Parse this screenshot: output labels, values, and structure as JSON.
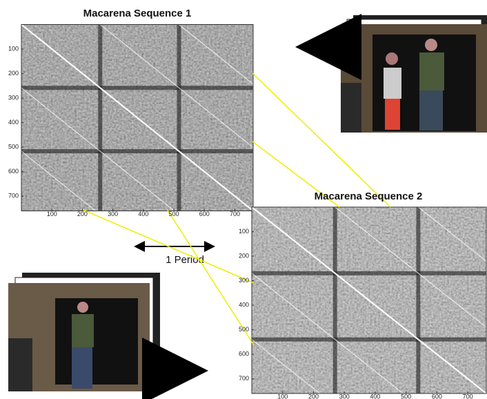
{
  "panels": [
    {
      "title": "Macarena Sequence 1",
      "xlim": [
        0,
        760
      ],
      "ylim": [
        0,
        760
      ],
      "xticks": [
        100,
        200,
        300,
        400,
        500,
        600,
        700
      ],
      "yticks": [
        100,
        200,
        300,
        400,
        500,
        600,
        700
      ]
    },
    {
      "title": "Macarena Sequence 2",
      "xlim": [
        0,
        760
      ],
      "ylim": [
        0,
        760
      ],
      "xticks": [
        100,
        200,
        300,
        400,
        500,
        600,
        700
      ],
      "yticks": [
        100,
        200,
        300,
        400,
        500,
        600,
        700
      ]
    }
  ],
  "annotation": "1 Period"
}
